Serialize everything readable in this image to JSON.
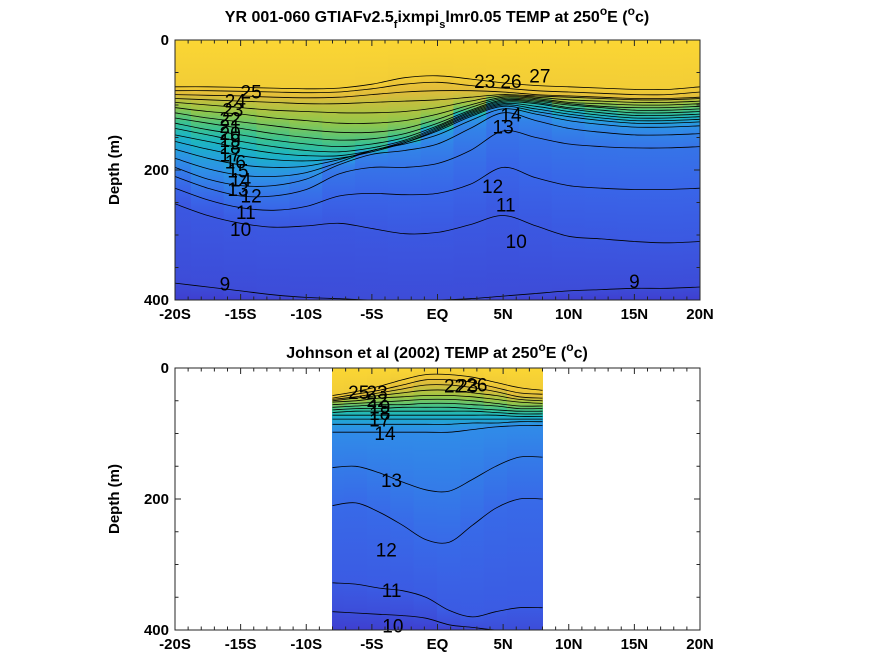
{
  "figure": {
    "background": "#ffffff",
    "colormap": [
      "#3e3fd0",
      "#3a63e8",
      "#2f8ee8",
      "#19b4c8",
      "#3fc38a",
      "#9cc644",
      "#e2bb3a",
      "#fbd634"
    ]
  },
  "chart_data": [
    {
      "type": "contour",
      "title": {
        "main": "YR 001-060 GTIAFv2.5",
        "sub1": "f",
        "mid1": "ixmpi",
        "sub2": "s",
        "mid2": "lmr0.05 TEMP at 250",
        "sup1": "o",
        "mid3": "E (",
        "sup2": "o",
        "end": "c)"
      },
      "ylabel": "Depth (m)",
      "xlim": [
        -20,
        20
      ],
      "ylim": [
        0,
        400
      ],
      "y_inverted": true,
      "x_ticks": [
        -20,
        -15,
        -10,
        -5,
        0,
        5,
        10,
        15,
        20
      ],
      "x_tick_labels": [
        "-20S",
        "-15S",
        "-10S",
        "-5S",
        "EQ",
        "5N",
        "10N",
        "15N",
        "20N"
      ],
      "y_ticks": [
        0,
        200,
        400
      ],
      "y_tick_labels": [
        "0",
        "200",
        "400"
      ],
      "data_x_range": [
        -20,
        20
      ],
      "contours": [
        {
          "level": 27,
          "depths": [
            72,
            72,
            73,
            74,
            75,
            74,
            68,
            58,
            55,
            60,
            66,
            70,
            72,
            74,
            76,
            76,
            72
          ]
        },
        {
          "level": 26,
          "depths": [
            78,
            78,
            79,
            80,
            81,
            80,
            75,
            68,
            65,
            70,
            74,
            78,
            80,
            82,
            84,
            84,
            80
          ]
        },
        {
          "level": 25,
          "depths": [
            84,
            85,
            86,
            88,
            89,
            88,
            84,
            80,
            78,
            78,
            80,
            84,
            86,
            88,
            90,
            90,
            88
          ]
        },
        {
          "level": 24,
          "depths": [
            90,
            92,
            94,
            96,
            98,
            98,
            96,
            94,
            92,
            88,
            84,
            86,
            88,
            90,
            92,
            92,
            90
          ]
        },
        {
          "level": 23,
          "depths": [
            96,
            100,
            104,
            108,
            110,
            112,
            112,
            110,
            104,
            94,
            86,
            88,
            92,
            94,
            96,
            96,
            94
          ]
        },
        {
          "level": 22,
          "depths": [
            104,
            110,
            114,
            120,
            124,
            128,
            128,
            124,
            114,
            100,
            88,
            90,
            96,
            98,
            100,
            100,
            98
          ]
        },
        {
          "level": 21,
          "depths": [
            112,
            120,
            126,
            132,
            138,
            142,
            142,
            136,
            122,
            104,
            90,
            92,
            98,
            102,
            104,
            104,
            102
          ]
        },
        {
          "level": 20,
          "depths": [
            120,
            128,
            136,
            144,
            150,
            154,
            152,
            144,
            128,
            108,
            92,
            94,
            100,
            104,
            108,
            108,
            106
          ]
        },
        {
          "level": 19,
          "depths": [
            128,
            138,
            146,
            154,
            160,
            164,
            160,
            150,
            132,
            110,
            94,
            96,
            104,
            108,
            112,
            112,
            110
          ]
        },
        {
          "level": 18,
          "depths": [
            136,
            146,
            156,
            164,
            170,
            172,
            166,
            154,
            134,
            112,
            96,
            98,
            106,
            112,
            116,
            116,
            114
          ]
        },
        {
          "level": 17,
          "depths": [
            146,
            156,
            166,
            174,
            178,
            178,
            170,
            156,
            136,
            114,
            98,
            102,
            110,
            116,
            120,
            120,
            118
          ]
        },
        {
          "level": 16,
          "depths": [
            156,
            168,
            178,
            184,
            186,
            182,
            172,
            158,
            138,
            116,
            100,
            106,
            114,
            120,
            124,
            124,
            122
          ]
        },
        {
          "level": 15,
          "depths": [
            168,
            182,
            192,
            196,
            194,
            184,
            170,
            158,
            140,
            118,
            102,
            110,
            118,
            124,
            128,
            128,
            126
          ]
        },
        {
          "level": 14,
          "depths": [
            182,
            198,
            208,
            210,
            204,
            188,
            170,
            160,
            146,
            124,
            106,
            114,
            124,
            130,
            134,
            134,
            132
          ]
        },
        {
          "level": 13,
          "depths": [
            196,
            214,
            224,
            224,
            214,
            192,
            176,
            170,
            160,
            136,
            112,
            124,
            136,
            142,
            146,
            146,
            144
          ]
        },
        {
          "level": 12,
          "depths": [
            210,
            228,
            240,
            240,
            230,
            206,
            196,
            196,
            190,
            170,
            140,
            150,
            160,
            164,
            166,
            166,
            164
          ]
        },
        {
          "level": 11,
          "depths": [
            228,
            246,
            258,
            262,
            256,
            240,
            236,
            238,
            236,
            222,
            196,
            212,
            224,
            228,
            230,
            230,
            228
          ]
        },
        {
          "level": 10,
          "depths": [
            252,
            270,
            282,
            288,
            286,
            282,
            290,
            298,
            296,
            284,
            270,
            286,
            302,
            306,
            310,
            312,
            310
          ]
        },
        {
          "level": 9,
          "depths": [
            374,
            380,
            386,
            392,
            396,
            398,
            400,
            400,
            400,
            398,
            394,
            390,
            386,
            384,
            382,
            382,
            380
          ]
        }
      ],
      "contour_labels": [
        {
          "text": "25",
          "x": -14.2,
          "y": 82
        },
        {
          "text": "24",
          "x": -15.4,
          "y": 96
        },
        {
          "text": "23",
          "x": -15.6,
          "y": 110
        },
        {
          "text": "22",
          "x": -15.8,
          "y": 124
        },
        {
          "text": "21",
          "x": -15.8,
          "y": 135
        },
        {
          "text": "20",
          "x": -15.8,
          "y": 146
        },
        {
          "text": "19",
          "x": -15.8,
          "y": 157
        },
        {
          "text": "18",
          "x": -15.8,
          "y": 168
        },
        {
          "text": "17",
          "x": -15.8,
          "y": 179
        },
        {
          "text": "16",
          "x": -15.4,
          "y": 190
        },
        {
          "text": "15",
          "x": -15.2,
          "y": 204
        },
        {
          "text": "14",
          "x": -15.0,
          "y": 218
        },
        {
          "text": "13",
          "x": -15.2,
          "y": 232
        },
        {
          "text": "12",
          "x": -14.2,
          "y": 242
        },
        {
          "text": "11",
          "x": -14.6,
          "y": 268
        },
        {
          "text": "10",
          "x": -15.0,
          "y": 294
        },
        {
          "text": "9",
          "x": -16.2,
          "y": 378
        },
        {
          "text": "23",
          "x": 3.6,
          "y": 66
        },
        {
          "text": "26",
          "x": 5.6,
          "y": 66
        },
        {
          "text": "27",
          "x": 7.8,
          "y": 58
        },
        {
          "text": "14",
          "x": 5.6,
          "y": 118
        },
        {
          "text": "13",
          "x": 5.0,
          "y": 136
        },
        {
          "text": "12",
          "x": 4.2,
          "y": 228
        },
        {
          "text": "11",
          "x": 5.2,
          "y": 256
        },
        {
          "text": "10",
          "x": 6.0,
          "y": 312
        },
        {
          "text": "9",
          "x": 15.0,
          "y": 374
        }
      ]
    },
    {
      "type": "contour",
      "title": {
        "main": "Johnson et al (2002) TEMP at 250",
        "sup1": "o",
        "mid1": "E (",
        "sup2": "o",
        "end": "c)"
      },
      "ylabel": "Depth (m)",
      "xlim": [
        -20,
        20
      ],
      "ylim": [
        0,
        400
      ],
      "y_inverted": true,
      "x_ticks": [
        -20,
        -15,
        -10,
        -5,
        0,
        5,
        10,
        15,
        20
      ],
      "x_tick_labels": [
        "-20S",
        "-15S",
        "-10S",
        "-5S",
        "EQ",
        "5N",
        "10N",
        "15N",
        "20N"
      ],
      "y_ticks": [
        0,
        200,
        400
      ],
      "y_tick_labels": [
        "0",
        "200",
        "400"
      ],
      "data_x_range": [
        -8,
        8
      ],
      "contours": [
        {
          "level": 26,
          "depths": [
            42,
            36,
            28,
            18,
            10,
            10,
            14,
            22,
            30,
            34
          ]
        },
        {
          "level": 25,
          "depths": [
            46,
            40,
            34,
            26,
            18,
            18,
            22,
            30,
            38,
            40
          ]
        },
        {
          "level": 24,
          "depths": [
            48,
            44,
            38,
            32,
            26,
            26,
            30,
            36,
            44,
            46
          ]
        },
        {
          "level": 23,
          "depths": [
            50,
            46,
            42,
            38,
            34,
            34,
            38,
            42,
            48,
            50
          ]
        },
        {
          "level": 22,
          "depths": [
            52,
            50,
            46,
            44,
            42,
            42,
            44,
            48,
            52,
            54
          ]
        },
        {
          "level": 21,
          "depths": [
            56,
            54,
            52,
            50,
            48,
            48,
            50,
            54,
            58,
            58
          ]
        },
        {
          "level": 20,
          "depths": [
            60,
            58,
            56,
            56,
            54,
            54,
            56,
            58,
            62,
            62
          ]
        },
        {
          "level": 19,
          "depths": [
            64,
            62,
            62,
            60,
            60,
            60,
            62,
            64,
            66,
            66
          ]
        },
        {
          "level": 18,
          "depths": [
            68,
            66,
            66,
            66,
            66,
            66,
            66,
            68,
            70,
            70
          ]
        },
        {
          "level": 17,
          "depths": [
            72,
            72,
            72,
            72,
            72,
            72,
            72,
            72,
            74,
            74
          ]
        },
        {
          "level": 16,
          "depths": [
            78,
            78,
            78,
            78,
            78,
            78,
            78,
            78,
            78,
            78
          ]
        },
        {
          "level": 15,
          "depths": [
            86,
            86,
            86,
            86,
            86,
            86,
            84,
            84,
            82,
            82
          ]
        },
        {
          "level": 14,
          "depths": [
            98,
            98,
            98,
            98,
            98,
            98,
            94,
            90,
            88,
            88
          ]
        },
        {
          "level": 13,
          "depths": [
            152,
            150,
            160,
            174,
            186,
            188,
            170,
            150,
            136,
            136
          ]
        },
        {
          "level": 12,
          "depths": [
            210,
            206,
            220,
            240,
            262,
            266,
            240,
            214,
            200,
            200
          ]
        },
        {
          "level": 11,
          "depths": [
            328,
            330,
            336,
            340,
            350,
            370,
            380,
            372,
            366,
            366
          ]
        },
        {
          "level": 10,
          "depths": [
            372,
            374,
            376,
            378,
            382,
            392,
            396,
            400,
            400,
            400
          ]
        }
      ],
      "contour_labels": [
        {
          "text": "25",
          "x": -6.0,
          "y": 40
        },
        {
          "text": "23",
          "x": -4.6,
          "y": 40
        },
        {
          "text": "22",
          "x": -4.6,
          "y": 52
        },
        {
          "text": "19",
          "x": -4.4,
          "y": 62
        },
        {
          "text": "18",
          "x": -4.4,
          "y": 72
        },
        {
          "text": "17",
          "x": -4.4,
          "y": 82
        },
        {
          "text": "14",
          "x": -4.0,
          "y": 102
        },
        {
          "text": "22",
          "x": 1.3,
          "y": 30
        },
        {
          "text": "23",
          "x": 2.3,
          "y": 30
        },
        {
          "text": "26",
          "x": 3.0,
          "y": 28
        },
        {
          "text": "13",
          "x": -3.5,
          "y": 174
        },
        {
          "text": "12",
          "x": -3.9,
          "y": 280
        },
        {
          "text": "11",
          "x": -3.5,
          "y": 342
        },
        {
          "text": "10",
          "x": -3.4,
          "y": 396
        }
      ]
    }
  ]
}
